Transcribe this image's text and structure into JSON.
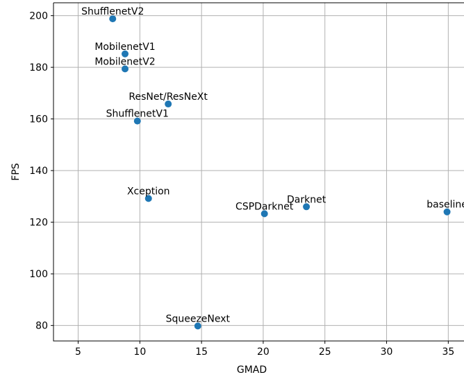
{
  "chart_data": {
    "type": "scatter",
    "title": "",
    "xlabel": "GMAD",
    "ylabel": "FPS",
    "xlim": [
      3,
      36.5
    ],
    "ylim": [
      74,
      205
    ],
    "xticks": [
      5,
      10,
      15,
      20,
      25,
      30,
      35
    ],
    "yticks": [
      80,
      100,
      120,
      140,
      160,
      180,
      200
    ],
    "grid": true,
    "point_color": "#1f77b4",
    "points": [
      {
        "label": "ShufflenetV2",
        "x": 7.8,
        "y": 198.8
      },
      {
        "label": "MobilenetV1",
        "x": 8.8,
        "y": 185.2
      },
      {
        "label": "MobilenetV2",
        "x": 8.8,
        "y": 179.4
      },
      {
        "label": "ResNet/ResNeXt",
        "x": 12.3,
        "y": 165.8
      },
      {
        "label": "ShufflenetV1",
        "x": 9.8,
        "y": 159.2
      },
      {
        "label": "Xception",
        "x": 10.7,
        "y": 129.2
      },
      {
        "label": "CSPDarknet",
        "x": 20.1,
        "y": 123.3
      },
      {
        "label": "Darknet",
        "x": 23.5,
        "y": 126.0
      },
      {
        "label": "baseline",
        "x": 34.9,
        "y": 124.0
      },
      {
        "label": "SqueezeNext",
        "x": 14.7,
        "y": 79.8
      }
    ]
  }
}
